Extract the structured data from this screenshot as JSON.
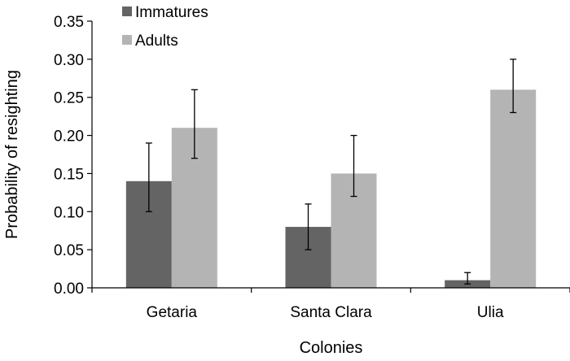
{
  "chart_data": {
    "type": "bar",
    "categories": [
      "Getaria",
      "Santa Clara",
      "Ulia"
    ],
    "series": [
      {
        "name": "Immatures",
        "color": "#646464",
        "values": [
          0.14,
          0.08,
          0.01
        ],
        "error_low": [
          0.1,
          0.05,
          0.005
        ],
        "error_high": [
          0.19,
          0.11,
          0.02
        ]
      },
      {
        "name": "Adults",
        "color": "#b4b4b4",
        "values": [
          0.21,
          0.15,
          0.26
        ],
        "error_low": [
          0.17,
          0.12,
          0.23
        ],
        "error_high": [
          0.26,
          0.2,
          0.3
        ]
      }
    ],
    "xlabel": "Colonies",
    "ylabel": "Probability of resighting",
    "ylim": [
      0,
      0.35
    ],
    "yticks": [
      "0.00",
      "0.05",
      "0.10",
      "0.15",
      "0.20",
      "0.25",
      "0.30",
      "0.35"
    ],
    "grid": false,
    "legend_position": "top-left"
  }
}
